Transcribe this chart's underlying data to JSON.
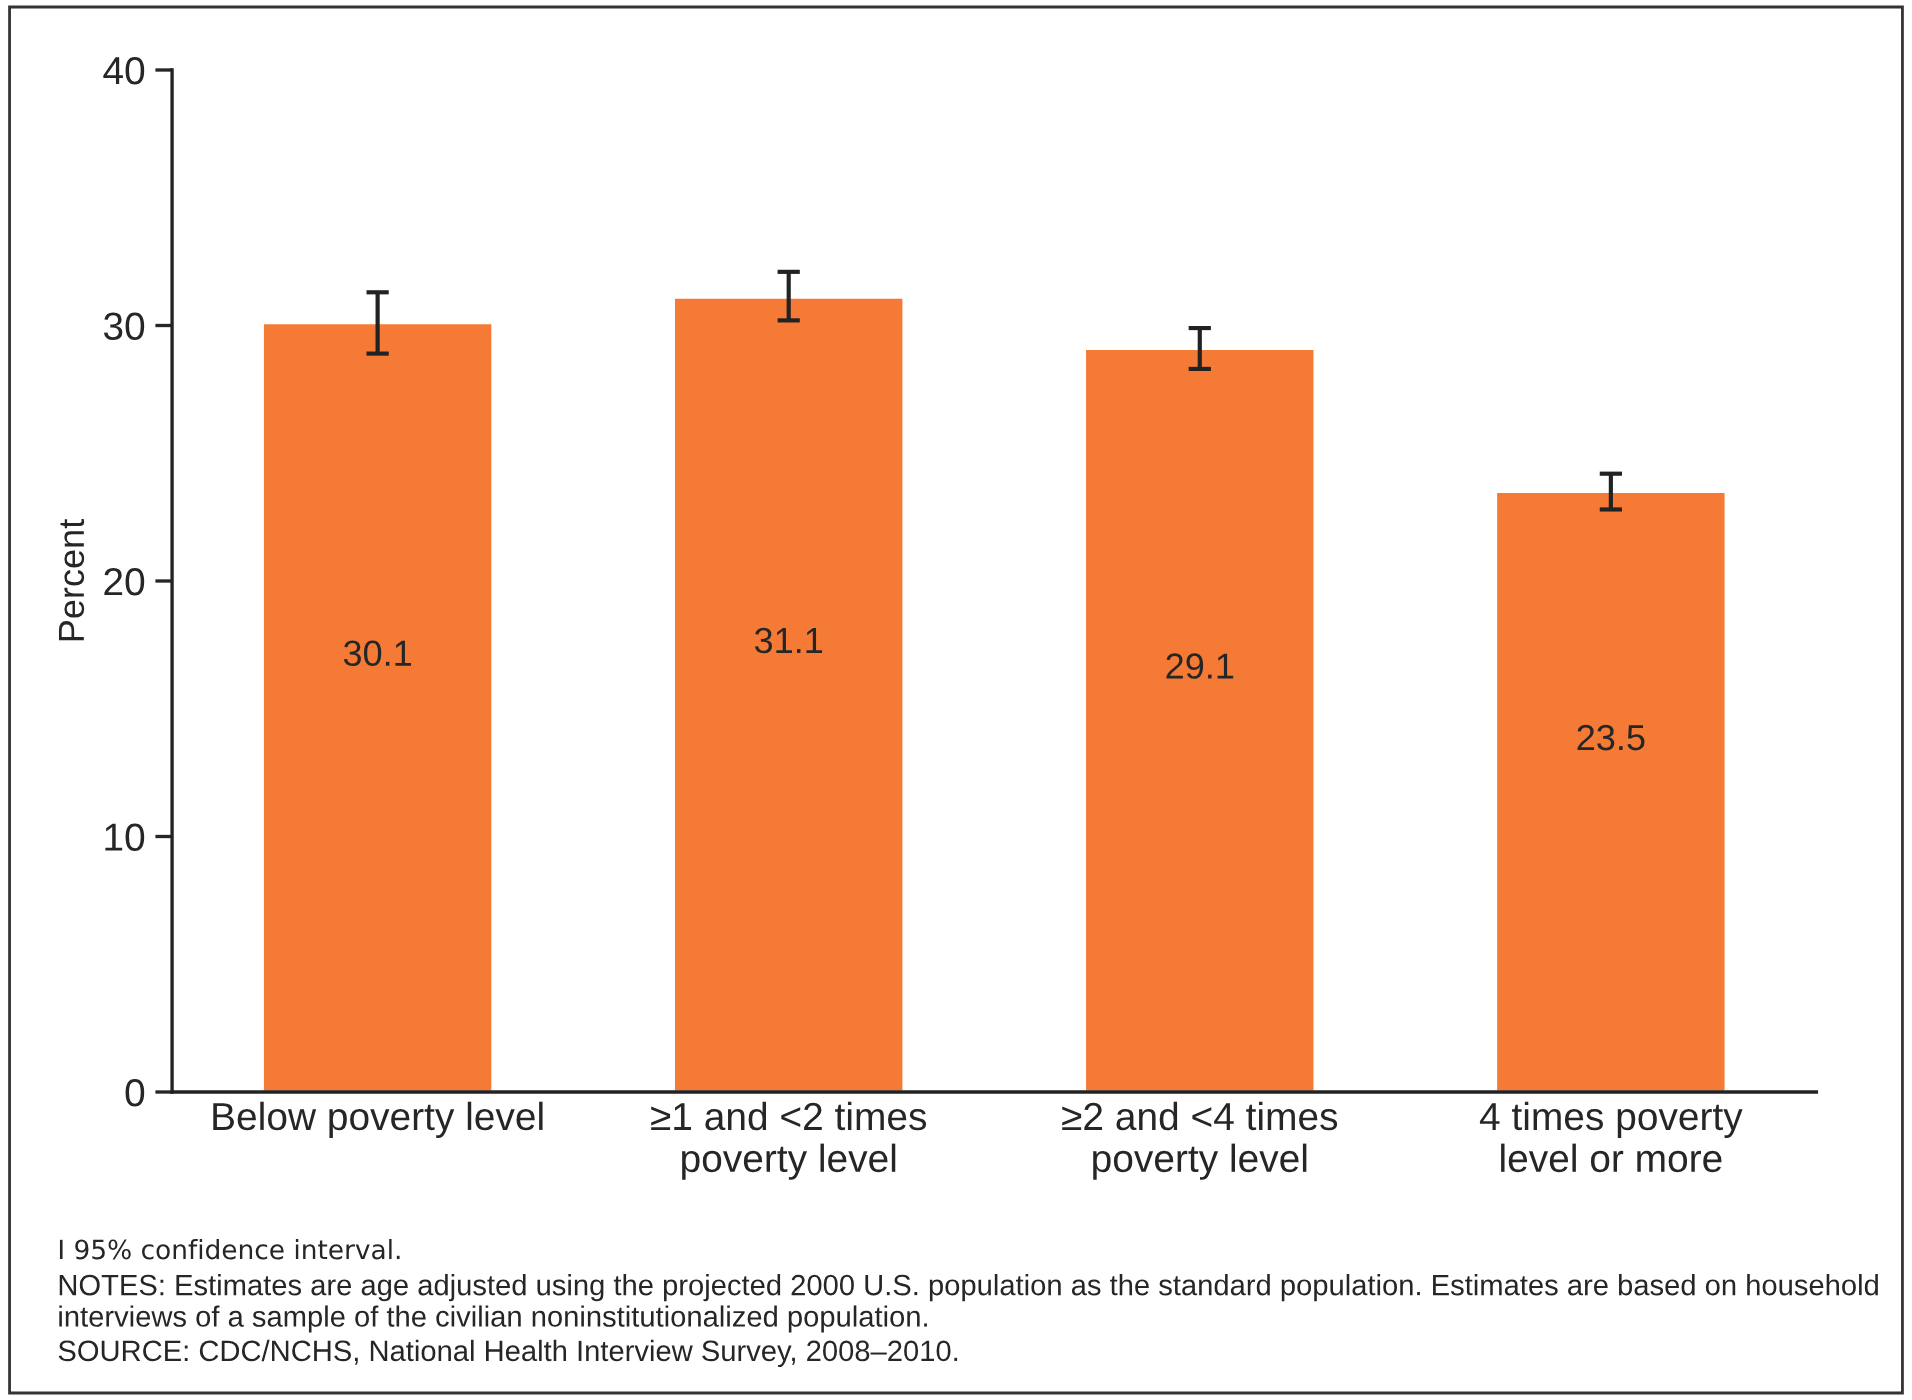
{
  "chart_data": {
    "type": "bar",
    "ylabel": "Percent",
    "categories": [
      "Below poverty level",
      "≥1 and <2 times\npoverty level",
      "≥2 and <4 times\npoverty level",
      "4 times poverty\nlevel or more"
    ],
    "values": [
      30.1,
      31.1,
      29.1,
      23.5
    ],
    "errors": [
      [
        28.9,
        31.3
      ],
      [
        30.2,
        32.1
      ],
      [
        28.3,
        29.9
      ],
      [
        22.8,
        24.2
      ]
    ],
    "color": "#f47a36",
    "data_labels": true,
    "ylim": [
      0,
      40
    ],
    "yticks": [
      0,
      10,
      20,
      30,
      40
    ],
    "grid": false,
    "legend": false,
    "annotations": [
      "Ⅰ 95% confidence interval.",
      "NOTES: Estimates are age adjusted using the projected 2000 U.S. population as the standard population. Estimates are based on household interviews of a sample of the civilian noninstitutionalized population.",
      "SOURCE: CDC/NCHS, National Health Interview Survey, 2008–2010."
    ]
  }
}
